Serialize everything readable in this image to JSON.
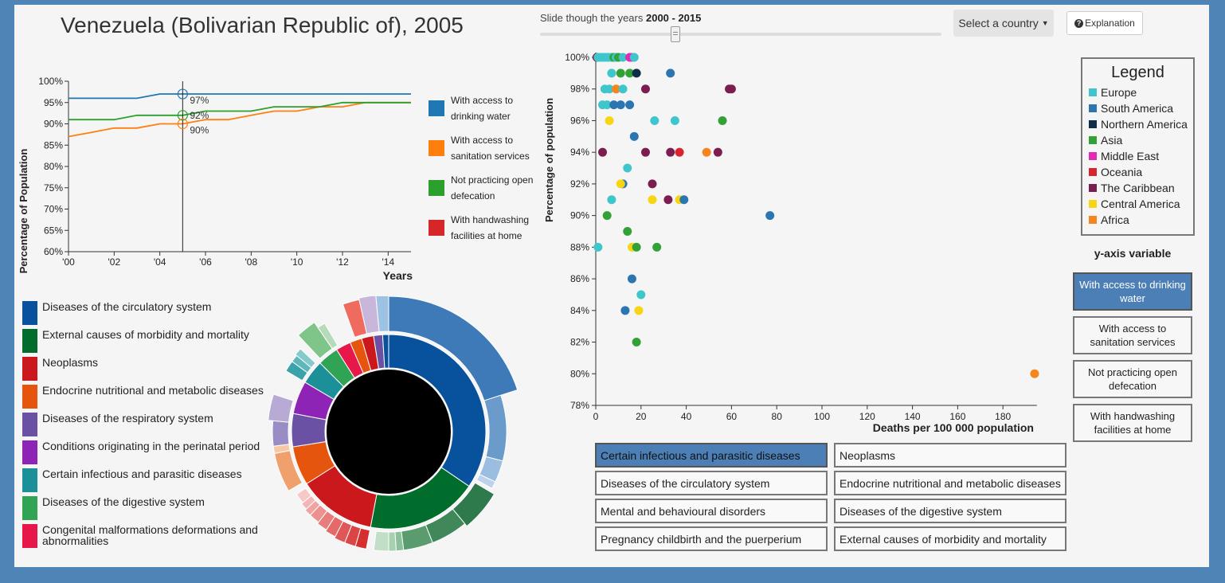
{
  "header": {
    "title": "Venezuela (Bolivarian Republic of), 2005"
  },
  "slider": {
    "label_prefix": "Slide though the years ",
    "range": "2000 - 2015",
    "value": 2005
  },
  "controls": {
    "select_country": "Select a country",
    "explanation": "Explanation"
  },
  "line_chart": {
    "ylabel": "Percentage of Population",
    "xlabel": "Years",
    "yticks": [
      "100%",
      "95%",
      "90%",
      "85%",
      "80%",
      "75%",
      "70%",
      "65%",
      "60%"
    ],
    "xticks": [
      "'00",
      "'02",
      "'04",
      "'06",
      "'08",
      "'10",
      "'12",
      "'14"
    ],
    "marker_labels": [
      "97%",
      "92%",
      "90%"
    ],
    "legend": [
      {
        "label": "With access to drinking water",
        "color": "#1f77b4"
      },
      {
        "label": "With access to sanitation services",
        "color": "#ff7f0e"
      },
      {
        "label": "Not practicing open defecation",
        "color": "#2ca02c"
      },
      {
        "label": "With handwashing facilities at home",
        "color": "#d62728"
      }
    ]
  },
  "chart_data": [
    {
      "type": "line",
      "xlabel": "Years",
      "ylabel": "Percentage of Population",
      "ylim": [
        60,
        100
      ],
      "xlim": [
        2000,
        2015
      ],
      "x": [
        2000,
        2001,
        2002,
        2003,
        2004,
        2005,
        2006,
        2007,
        2008,
        2009,
        2010,
        2011,
        2012,
        2013,
        2014,
        2015
      ],
      "series": [
        {
          "name": "With access to drinking water",
          "values": [
            96,
            96,
            96,
            96,
            97,
            97,
            97,
            97,
            97,
            97,
            97,
            97,
            97,
            97,
            97,
            97
          ]
        },
        {
          "name": "With access to sanitation services",
          "values": [
            87,
            88,
            89,
            89,
            90,
            90,
            91,
            91,
            92,
            93,
            93,
            94,
            94,
            95,
            95,
            95
          ]
        },
        {
          "name": "Not practicing open defecation",
          "values": [
            91,
            91,
            91,
            92,
            92,
            92,
            93,
            93,
            93,
            94,
            94,
            94,
            95,
            95,
            95,
            95
          ]
        }
      ],
      "marker_year": 2005
    },
    {
      "type": "scatter",
      "xlabel": "Deaths per 100 000 population",
      "ylabel": "Percentage of population",
      "xlim": [
        0,
        195
      ],
      "ylim": [
        78,
        100
      ],
      "xticks": [
        0,
        20,
        40,
        60,
        80,
        100,
        120,
        140,
        160,
        180
      ],
      "yticks": [
        "100%",
        "98%",
        "96%",
        "94%",
        "92%",
        "90%",
        "88%",
        "86%",
        "84%",
        "82%",
        "80%",
        "78%"
      ],
      "regions": [
        {
          "name": "Europe",
          "color": "#3ec6cc"
        },
        {
          "name": "South America",
          "color": "#2b75b1"
        },
        {
          "name": "Northern America",
          "color": "#0e2d4a"
        },
        {
          "name": "Asia",
          "color": "#32a237"
        },
        {
          "name": "Middle East",
          "color": "#e32ab6"
        },
        {
          "name": "Oceania",
          "color": "#d6252f"
        },
        {
          "name": "The Caribbean",
          "color": "#7b1e4f"
        },
        {
          "name": "Central America",
          "color": "#f7d515"
        },
        {
          "name": "Africa",
          "color": "#f5851f"
        }
      ],
      "points": [
        {
          "x": 0.5,
          "y": 100,
          "r": "The Caribbean"
        },
        {
          "x": 1,
          "y": 100,
          "r": "Europe"
        },
        {
          "x": 2,
          "y": 100,
          "r": "Europe"
        },
        {
          "x": 3,
          "y": 100,
          "r": "Europe"
        },
        {
          "x": 4,
          "y": 100,
          "r": "Europe"
        },
        {
          "x": 5,
          "y": 100,
          "r": "Europe"
        },
        {
          "x": 6,
          "y": 100,
          "r": "Europe"
        },
        {
          "x": 7,
          "y": 100,
          "r": "Europe"
        },
        {
          "x": 8,
          "y": 100,
          "r": "Asia"
        },
        {
          "x": 9,
          "y": 100,
          "r": "Europe"
        },
        {
          "x": 10,
          "y": 100,
          "r": "Asia"
        },
        {
          "x": 12,
          "y": 100,
          "r": "Europe"
        },
        {
          "x": 15,
          "y": 100,
          "r": "Middle East"
        },
        {
          "x": 16,
          "y": 100,
          "r": "Middle East"
        },
        {
          "x": 17,
          "y": 100,
          "r": "Europe"
        },
        {
          "x": 7,
          "y": 99,
          "r": "Europe"
        },
        {
          "x": 11,
          "y": 99,
          "r": "Asia"
        },
        {
          "x": 15,
          "y": 99,
          "r": "Asia"
        },
        {
          "x": 18,
          "y": 99,
          "r": "Northern America"
        },
        {
          "x": 33,
          "y": 99,
          "r": "South America"
        },
        {
          "x": 4,
          "y": 98,
          "r": "Europe"
        },
        {
          "x": 6,
          "y": 98,
          "r": "Europe"
        },
        {
          "x": 9,
          "y": 98,
          "r": "Africa"
        },
        {
          "x": 12,
          "y": 98,
          "r": "Europe"
        },
        {
          "x": 22,
          "y": 98,
          "r": "The Caribbean"
        },
        {
          "x": 59,
          "y": 98,
          "r": "The Caribbean"
        },
        {
          "x": 60,
          "y": 98,
          "r": "The Caribbean"
        },
        {
          "x": 3,
          "y": 97,
          "r": "Europe"
        },
        {
          "x": 5,
          "y": 97,
          "r": "Europe"
        },
        {
          "x": 8,
          "y": 97,
          "r": "South America"
        },
        {
          "x": 11,
          "y": 97,
          "r": "South America"
        },
        {
          "x": 15,
          "y": 97,
          "r": "South America"
        },
        {
          "x": 6,
          "y": 96,
          "r": "Central America"
        },
        {
          "x": 26,
          "y": 96,
          "r": "Europe"
        },
        {
          "x": 35,
          "y": 96,
          "r": "Europe"
        },
        {
          "x": 56,
          "y": 96,
          "r": "Asia"
        },
        {
          "x": 17,
          "y": 95,
          "r": "South America"
        },
        {
          "x": 3,
          "y": 94,
          "r": "The Caribbean"
        },
        {
          "x": 22,
          "y": 94,
          "r": "The Caribbean"
        },
        {
          "x": 33,
          "y": 94,
          "r": "The Caribbean"
        },
        {
          "x": 37,
          "y": 94,
          "r": "Oceania"
        },
        {
          "x": 49,
          "y": 94,
          "r": "Africa"
        },
        {
          "x": 54,
          "y": 94,
          "r": "The Caribbean"
        },
        {
          "x": 14,
          "y": 93,
          "r": "Europe"
        },
        {
          "x": 12,
          "y": 92,
          "r": "South America"
        },
        {
          "x": 11,
          "y": 92,
          "r": "Central America"
        },
        {
          "x": 25,
          "y": 92,
          "r": "The Caribbean"
        },
        {
          "x": 7,
          "y": 91,
          "r": "Europe"
        },
        {
          "x": 25,
          "y": 91,
          "r": "Central America"
        },
        {
          "x": 32,
          "y": 91,
          "r": "The Caribbean"
        },
        {
          "x": 37,
          "y": 91,
          "r": "Central America"
        },
        {
          "x": 39,
          "y": 91,
          "r": "South America"
        },
        {
          "x": 5,
          "y": 90,
          "r": "Asia"
        },
        {
          "x": 77,
          "y": 90,
          "r": "South America"
        },
        {
          "x": 14,
          "y": 89,
          "r": "Asia"
        },
        {
          "x": 1,
          "y": 88,
          "r": "Europe"
        },
        {
          "x": 16,
          "y": 88,
          "r": "Central America"
        },
        {
          "x": 18,
          "y": 88,
          "r": "Asia"
        },
        {
          "x": 27,
          "y": 88,
          "r": "Asia"
        },
        {
          "x": 16,
          "y": 86,
          "r": "South America"
        },
        {
          "x": 20,
          "y": 85,
          "r": "Europe"
        },
        {
          "x": 13,
          "y": 84,
          "r": "South America"
        },
        {
          "x": 19,
          "y": 84,
          "r": "Central America"
        },
        {
          "x": 18,
          "y": 82,
          "r": "Asia"
        },
        {
          "x": 194,
          "y": 80,
          "r": "Africa"
        }
      ]
    }
  ],
  "scatter": {
    "ylabel": "Percentage of population",
    "xlabel": "Deaths per 100 000 population"
  },
  "legend": {
    "title": "Legend"
  },
  "yvar": {
    "title": "y-axis variable",
    "options": [
      "With access to drinking water",
      "With access to sanitation services",
      "Not practicing open defecation",
      "With handwashing facilities at home"
    ],
    "selected": 0
  },
  "causes": {
    "options": [
      "Certain infectious and parasitic diseases",
      "Neoplasms",
      "Diseases of the circulatory system",
      "Endocrine nutritional and metabolic diseases",
      "Mental and behavioural disorders",
      "Diseases of the digestive system",
      "Pregnancy childbirth and the puerperium",
      "External causes of morbidity and mortality"
    ],
    "selected": 0
  },
  "sunburst_legend": [
    {
      "label": "Diseases of the circulatory system",
      "color": "#08519c"
    },
    {
      "label": "External causes of morbidity and mortality",
      "color": "#006d2c"
    },
    {
      "label": "Neoplasms",
      "color": "#cb181d"
    },
    {
      "label": "Endocrine nutritional and metabolic diseases",
      "color": "#e6550d"
    },
    {
      "label": "Diseases of the respiratory system",
      "color": "#6a51a3"
    },
    {
      "label": "Conditions originating in the perinatal period",
      "color": "#8e24b5"
    },
    {
      "label": "Certain infectious and parasitic diseases",
      "color": "#1c9099"
    },
    {
      "label": "Diseases of the digestive system",
      "color": "#31a354"
    },
    {
      "label": "Congenital malformations deformations and abnormalities",
      "color": "#e7174a"
    }
  ]
}
